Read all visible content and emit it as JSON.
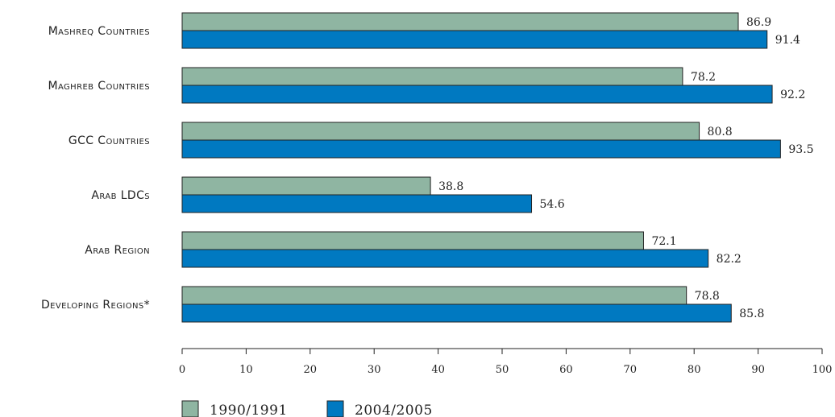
{
  "chart_data": {
    "type": "bar",
    "orientation": "horizontal",
    "categories": [
      "Mashreq Countries",
      "Maghreb Countries",
      "GCC Countries",
      "Arab LDCs",
      "Arab Region",
      "Developing Regions*"
    ],
    "series": [
      {
        "name": "1990/1991",
        "values": [
          86.9,
          78.2,
          80.8,
          38.8,
          72.1,
          78.8
        ]
      },
      {
        "name": "2004/2005",
        "values": [
          91.4,
          92.2,
          93.5,
          54.6,
          82.2,
          85.8
        ]
      }
    ],
    "xlim": [
      0,
      100
    ],
    "xticks": [
      0,
      10,
      20,
      30,
      40,
      50,
      60,
      70,
      80,
      90,
      100
    ],
    "legend_position": "bottom-left",
    "grid": false,
    "colors": {
      "1990/1991": "#8fb5a2",
      "2004/2005": "#0079c1"
    }
  }
}
